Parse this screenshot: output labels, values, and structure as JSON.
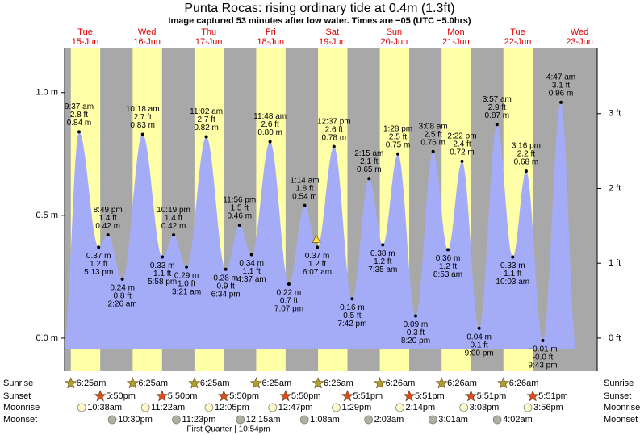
{
  "chart_data": {
    "type": "tide",
    "title": "Punta Rocas: rising  ordinary tide at 0.4m (1.3ft)",
    "subtitle": "Image captured 53 minutes after low water. Times are −05 (UTC −5.0hrs)",
    "ylim": [
      -0.135,
      1.18
    ],
    "yticks": [
      {
        "value": 0,
        "label": "0.0 m"
      },
      {
        "value": 0.5,
        "label": "0.5 m"
      },
      {
        "value": 1,
        "label": "1.0 m"
      }
    ],
    "y2lim": [
      -0.443,
      3.871
    ],
    "y2ticks": [
      {
        "value": 0,
        "label": "0 ft"
      },
      {
        "value": 1,
        "label": "1 ft"
      },
      {
        "value": 2,
        "label": "2 ft"
      },
      {
        "value": 3,
        "label": "3 ft"
      }
    ],
    "row_labels": [
      "Sunrise",
      "Sunset",
      "Moonrise",
      "Moonset"
    ],
    "moon_phase": "First Quarter | 10:54pm",
    "days": [
      {
        "weekday": "Tue",
        "date": "15-Jun",
        "sunrise": "6:25am",
        "sunset": "5:50pm",
        "moonrise": "10:38am",
        "moonset": "10:30pm",
        "tides": [
          {
            "time": "9:37 am",
            "ft": "2.8 ft",
            "m": 0.84,
            "m_label": "0.84 m"
          },
          {
            "time": "5:13 pm",
            "ft": "1.2 ft",
            "m": 0.37,
            "m_label": "0.37 m"
          },
          {
            "time": "8:49 pm",
            "ft": "1.4 ft",
            "m": 0.42,
            "m_label": "0.42 m"
          }
        ]
      },
      {
        "weekday": "Wed",
        "date": "16-Jun",
        "sunrise": "6:25am",
        "sunset": "5:50pm",
        "moonrise": "11:22am",
        "moonset": "11:23pm",
        "tides": [
          {
            "time": "2:26 am",
            "ft": "0.8 ft",
            "m": 0.24,
            "m_label": "0.24 m"
          },
          {
            "time": "10:18 am",
            "ft": "2.7 ft",
            "m": 0.83,
            "m_label": "0.83 m"
          },
          {
            "time": "5:58 pm",
            "ft": "1.1 ft",
            "m": 0.33,
            "m_label": "0.33 m"
          },
          {
            "time": "10:19 pm",
            "ft": "1.4 ft",
            "m": 0.42,
            "m_label": "0.42 m"
          }
        ]
      },
      {
        "weekday": "Thu",
        "date": "17-Jun",
        "sunrise": "6:25am",
        "sunset": "5:50pm",
        "moonrise": "12:05pm",
        "moonset": null,
        "tides": [
          {
            "time": "3:21 am",
            "ft": "1.0 ft",
            "m": 0.29,
            "m_label": "0.29 m"
          },
          {
            "time": "11:02 am",
            "ft": "2.7 ft",
            "m": 0.82,
            "m_label": "0.82 m"
          },
          {
            "time": "6:34 pm",
            "ft": "0.9 ft",
            "m": 0.28,
            "m_label": "0.28 m"
          },
          {
            "time": "11:56 pm",
            "ft": "1.5 ft",
            "m": 0.46,
            "m_label": "0.46 m"
          }
        ]
      },
      {
        "weekday": "Fri",
        "date": "18-Jun",
        "sunrise": "6:25am",
        "sunset": "5:50pm",
        "moonrise": "12:47pm",
        "moonset": "12:15am",
        "tides": [
          {
            "time": "4:37 am",
            "ft": "1.1 ft",
            "m": 0.34,
            "m_label": "0.34 m"
          },
          {
            "time": "11:48 am",
            "ft": "2.6 ft",
            "m": 0.8,
            "m_label": "0.80 m"
          },
          {
            "time": "7:07 pm",
            "ft": "0.7 ft",
            "m": 0.22,
            "m_label": "0.22 m"
          }
        ]
      },
      {
        "weekday": "Sat",
        "date": "19-Jun",
        "sunrise": "6:26am",
        "sunset": "5:51pm",
        "moonrise": "1:29pm",
        "moonset": "1:08am",
        "tides": [
          {
            "time": "1:14 am",
            "ft": "1.8 ft",
            "m": 0.54,
            "m_label": "0.54 m"
          },
          {
            "time": "6:07 am",
            "ft": "1.2 ft",
            "m": 0.37,
            "m_label": "0.37 m"
          },
          {
            "time": "12:37 pm",
            "ft": "2.6 ft",
            "m": 0.78,
            "m_label": "0.78 m"
          },
          {
            "time": "7:42 pm",
            "ft": "0.5 ft",
            "m": 0.16,
            "m_label": "0.16 m"
          }
        ]
      },
      {
        "weekday": "Sun",
        "date": "20-Jun",
        "sunrise": "6:26am",
        "sunset": "5:51pm",
        "moonrise": "2:14pm",
        "moonset": "2:03am",
        "tides": [
          {
            "time": "2:15 am",
            "ft": "2.1 ft",
            "m": 0.65,
            "m_label": "0.65 m"
          },
          {
            "time": "7:35 am",
            "ft": "1.2 ft",
            "m": 0.38,
            "m_label": "0.38 m"
          },
          {
            "time": "1:28 pm",
            "ft": "2.5 ft",
            "m": 0.75,
            "m_label": "0.75 m"
          },
          {
            "time": "8:20 pm",
            "ft": "0.3 ft",
            "m": 0.09,
            "m_label": "0.09 m"
          }
        ]
      },
      {
        "weekday": "Mon",
        "date": "21-Jun",
        "sunrise": "6:26am",
        "sunset": "5:51pm",
        "moonrise": "3:03pm",
        "moonset": "3:01am",
        "tides": [
          {
            "time": "3:08 am",
            "ft": "2.5 ft",
            "m": 0.76,
            "m_label": "0.76 m"
          },
          {
            "time": "8:53 am",
            "ft": "1.2 ft",
            "m": 0.36,
            "m_label": "0.36 m"
          },
          {
            "time": "2:22 pm",
            "ft": "2.4 ft",
            "m": 0.72,
            "m_label": "0.72 m"
          },
          {
            "time": "9:00 pm",
            "ft": "0.1 ft",
            "m": 0.04,
            "m_label": "0.04 m"
          }
        ]
      },
      {
        "weekday": "Tue",
        "date": "22-Jun",
        "sunrise": "6:26am",
        "sunset": "5:51pm",
        "moonrise": "3:56pm",
        "moonset": "4:02am",
        "tides": [
          {
            "time": "3:57 am",
            "ft": "2.9 ft",
            "m": 0.87,
            "m_label": "0.87 m"
          },
          {
            "time": "10:03 am",
            "ft": "1.1 ft",
            "m": 0.33,
            "m_label": "0.33 m"
          },
          {
            "time": "3:16 pm",
            "ft": "2.2 ft",
            "m": 0.68,
            "m_label": "0.68 m"
          },
          {
            "time": "9:43 pm",
            "ft": "-0.0 ft",
            "m": -0.01,
            "m_label": "−0.01 m"
          }
        ]
      },
      {
        "weekday": "Wed",
        "date": "23-Jun",
        "sunrise": null,
        "sunset": null,
        "moonrise": null,
        "moonset": null,
        "tides": [
          {
            "time": "4:47 am",
            "ft": "3.1 ft",
            "m": 0.96,
            "m_label": "0.96 m"
          }
        ]
      }
    ]
  }
}
